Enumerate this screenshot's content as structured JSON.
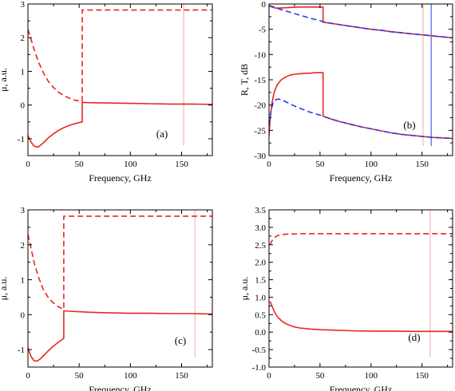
{
  "chart_data": [
    {
      "type": "line",
      "panel_label": "(a)",
      "xlabel": "Frequency, GHz",
      "ylabel": "μ, a.u.",
      "xlim": [
        0,
        180
      ],
      "ylim": [
        -1.5,
        3.0
      ],
      "xticks": [
        0,
        50,
        100,
        150
      ],
      "yticks": [
        -1,
        0,
        1,
        2,
        3
      ],
      "series": [
        {
          "color": "#e8271f",
          "dash": "solid",
          "x": [
            0,
            3,
            6,
            10,
            15,
            20,
            25,
            30,
            35,
            40,
            45,
            50,
            53,
            53,
            60,
            80,
            100,
            120,
            140,
            160,
            180
          ],
          "y": [
            -0.9,
            -1.1,
            -1.22,
            -1.25,
            -1.12,
            -0.97,
            -0.85,
            -0.75,
            -0.67,
            -0.61,
            -0.56,
            -0.52,
            -0.5,
            0.08,
            0.07,
            0.06,
            0.05,
            0.04,
            0.03,
            0.03,
            0.02
          ]
        },
        {
          "color": "#e8271f",
          "dash": "dashed",
          "x": [
            0,
            3,
            6,
            10,
            15,
            20,
            25,
            30,
            35,
            40,
            45,
            50,
            53,
            53,
            60,
            80,
            100,
            120,
            140,
            160,
            180
          ],
          "y": [
            2.25,
            1.95,
            1.65,
            1.3,
            0.96,
            0.7,
            0.52,
            0.38,
            0.28,
            0.21,
            0.15,
            0.12,
            0.11,
            2.82,
            2.82,
            2.82,
            2.82,
            2.82,
            2.82,
            2.82,
            2.82
          ]
        }
      ],
      "vlines": [
        {
          "x": 152,
          "color": "#f4a8a0"
        }
      ]
    },
    {
      "type": "line",
      "panel_label": "(b)",
      "xlabel": "Frequency, GHz",
      "ylabel": "R, T, dB",
      "xlim": [
        0,
        180
      ],
      "ylim": [
        -30,
        0
      ],
      "xticks": [
        0,
        50,
        100,
        150
      ],
      "yticks": [
        -30,
        -25,
        -20,
        -15,
        -10,
        -5,
        0
      ],
      "series": [
        {
          "color": "#e8271f",
          "dash": "solid",
          "x": [
            0,
            3,
            6,
            10,
            20,
            30,
            40,
            50,
            53,
            53,
            60,
            70,
            80,
            90,
            100,
            110,
            120,
            130,
            140,
            150,
            160,
            170,
            180
          ],
          "y": [
            -0.4,
            -0.6,
            -0.8,
            -0.8,
            -0.7,
            -0.6,
            -0.6,
            -0.6,
            -0.6,
            -3.6,
            -3.8,
            -4.1,
            -4.4,
            -4.7,
            -5.0,
            -5.2,
            -5.5,
            -5.7,
            -5.9,
            -6.1,
            -6.3,
            -6.5,
            -6.7
          ]
        },
        {
          "color": "#2b3cf0",
          "dash": "dashed",
          "x": [
            0,
            5,
            10,
            20,
            30,
            40,
            50,
            53,
            60,
            70,
            80,
            90,
            100,
            110,
            120,
            130,
            140,
            150,
            160,
            170,
            180
          ],
          "y": [
            -0.3,
            -0.6,
            -1.0,
            -1.6,
            -2.2,
            -2.8,
            -3.3,
            -3.5,
            -3.8,
            -4.1,
            -4.4,
            -4.7,
            -5.0,
            -5.2,
            -5.5,
            -5.7,
            -5.9,
            -6.1,
            -6.3,
            -6.5,
            -6.7
          ]
        },
        {
          "color": "#e8271f",
          "dash": "solid",
          "x": [
            0,
            1,
            3,
            5,
            8,
            12,
            16,
            20,
            25,
            30,
            35,
            40,
            45,
            50,
            53,
            53,
            60,
            70,
            80,
            90,
            100,
            110,
            120,
            130,
            140,
            150,
            160,
            170,
            180
          ],
          "y": [
            -26,
            -23,
            -19.5,
            -17.5,
            -16.0,
            -15.0,
            -14.5,
            -14.1,
            -13.9,
            -13.8,
            -13.7,
            -13.7,
            -13.6,
            -13.6,
            -13.6,
            -22.2,
            -22.7,
            -23.3,
            -23.8,
            -24.3,
            -24.7,
            -25.1,
            -25.5,
            -25.8,
            -26.0,
            -26.2,
            -26.4,
            -26.5,
            -26.6
          ]
        },
        {
          "color": "#2b3cf0",
          "dash": "dashed",
          "x": [
            0,
            2,
            4,
            6,
            9,
            12,
            15,
            20,
            25,
            30,
            40,
            50,
            53,
            60,
            70,
            80,
            90,
            100,
            110,
            120,
            130,
            140,
            150,
            160,
            170,
            180
          ],
          "y": [
            -24,
            -21,
            -19.5,
            -19.0,
            -18.8,
            -18.9,
            -19.2,
            -19.7,
            -20.2,
            -20.6,
            -21.4,
            -22.0,
            -22.2,
            -22.7,
            -23.3,
            -23.8,
            -24.3,
            -24.7,
            -25.1,
            -25.5,
            -25.8,
            -26.0,
            -26.2,
            -26.4,
            -26.5,
            -26.6
          ]
        }
      ],
      "vlines": [
        {
          "x": 151,
          "color": "#f4a8a0"
        },
        {
          "x": 159,
          "color": "#2b3cf0"
        }
      ]
    },
    {
      "type": "line",
      "panel_label": "(c)",
      "xlabel": "Frequency, GHz",
      "ylabel": "μ, a.u.",
      "xlim": [
        0,
        180
      ],
      "ylim": [
        -1.5,
        3.0
      ],
      "xticks": [
        0,
        50,
        100,
        150
      ],
      "yticks": [
        -1,
        0,
        1,
        2,
        3
      ],
      "series": [
        {
          "color": "#e8271f",
          "dash": "solid",
          "x": [
            0,
            3,
            6,
            9,
            12,
            15,
            20,
            25,
            30,
            34,
            35,
            35,
            40,
            60,
            80,
            100,
            120,
            140,
            160,
            180
          ],
          "y": [
            -0.95,
            -1.2,
            -1.32,
            -1.33,
            -1.27,
            -1.18,
            -1.03,
            -0.9,
            -0.78,
            -0.7,
            -0.68,
            0.11,
            0.1,
            0.07,
            0.05,
            0.04,
            0.04,
            0.03,
            0.03,
            0.02
          ]
        },
        {
          "color": "#e8271f",
          "dash": "dashed",
          "x": [
            0,
            3,
            6,
            10,
            15,
            20,
            25,
            30,
            34,
            35,
            35,
            40,
            60,
            80,
            100,
            120,
            140,
            160,
            180
          ],
          "y": [
            2.3,
            1.9,
            1.5,
            1.1,
            0.72,
            0.48,
            0.33,
            0.22,
            0.17,
            0.16,
            2.82,
            2.82,
            2.82,
            2.82,
            2.82,
            2.82,
            2.82,
            2.82,
            2.82
          ]
        }
      ],
      "vlines": [
        {
          "x": 163,
          "color": "#f4a8a0"
        }
      ]
    },
    {
      "type": "line",
      "panel_label": "(d)",
      "xlabel": "Frequency, GHz",
      "ylabel": "μ, a.u.",
      "xlim": [
        0,
        180
      ],
      "ylim": [
        -1.0,
        3.5
      ],
      "xticks": [
        0,
        50,
        100,
        150
      ],
      "yticks": [
        -1.0,
        -0.5,
        0.0,
        0.5,
        1.0,
        1.5,
        2.0,
        2.5,
        3.0,
        3.5
      ],
      "series": [
        {
          "color": "#e8271f",
          "dash": "solid",
          "x": [
            1,
            3,
            5,
            8,
            12,
            16,
            20,
            25,
            30,
            40,
            50,
            60,
            80,
            100,
            120,
            140,
            160,
            180
          ],
          "y": [
            0.88,
            0.75,
            0.6,
            0.45,
            0.33,
            0.25,
            0.2,
            0.15,
            0.12,
            0.09,
            0.07,
            0.06,
            0.04,
            0.03,
            0.03,
            0.02,
            0.02,
            0.02
          ]
        },
        {
          "color": "#e8271f",
          "dash": "dashed",
          "x": [
            1,
            3,
            5,
            8,
            12,
            16,
            20,
            25,
            30,
            40,
            50,
            60,
            80,
            100,
            120,
            140,
            160,
            180
          ],
          "y": [
            2.5,
            2.62,
            2.7,
            2.76,
            2.79,
            2.8,
            2.81,
            2.81,
            2.82,
            2.82,
            2.82,
            2.82,
            2.82,
            2.82,
            2.82,
            2.82,
            2.82,
            2.82
          ]
        }
      ],
      "vlines": [
        {
          "x": 158,
          "color": "#f4a8a0"
        }
      ]
    }
  ]
}
